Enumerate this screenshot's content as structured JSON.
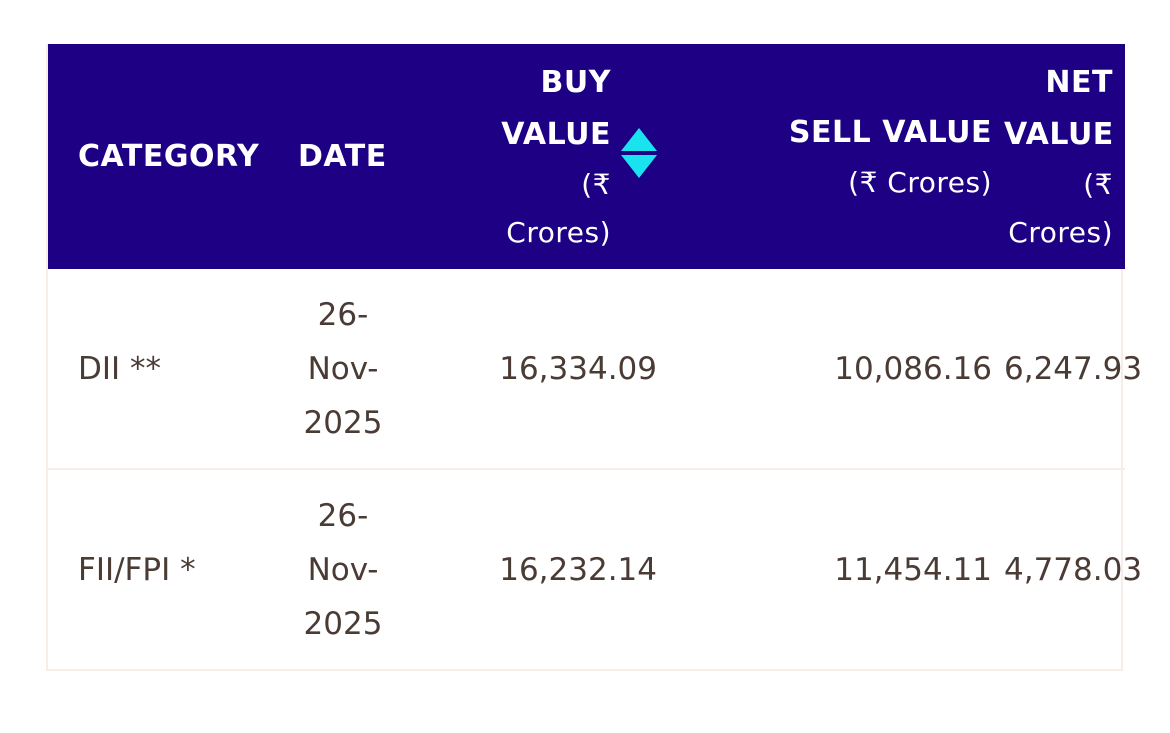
{
  "table": {
    "columns": {
      "category": "CATEGORY",
      "date": "DATE",
      "buy_line1": "BUY",
      "buy_line2": "VALUE",
      "buy_unit_line1": "(₹",
      "buy_unit_line2": "Crores)",
      "sell_label": "SELL VALUE",
      "sell_unit": "(₹ Crores)",
      "net_line1": "NET",
      "net_line2": "VALUE",
      "net_unit_line1": "(₹",
      "net_unit_line2": "Crores)"
    },
    "sort_icon": "sort-up-down-icon",
    "accent_color": "#1e0085",
    "sort_color": "#19e3ef",
    "rows": [
      {
        "category": "DII **",
        "date_parts": [
          "26-",
          "Nov-",
          "2025"
        ],
        "buy": "16,334.09",
        "sell": "10,086.16",
        "net": "6,247.93"
      },
      {
        "category": "FII/FPI *",
        "date_parts": [
          "26-",
          "Nov-",
          "2025"
        ],
        "buy": "16,232.14",
        "sell": "11,454.11",
        "net": "4,778.03"
      }
    ]
  }
}
